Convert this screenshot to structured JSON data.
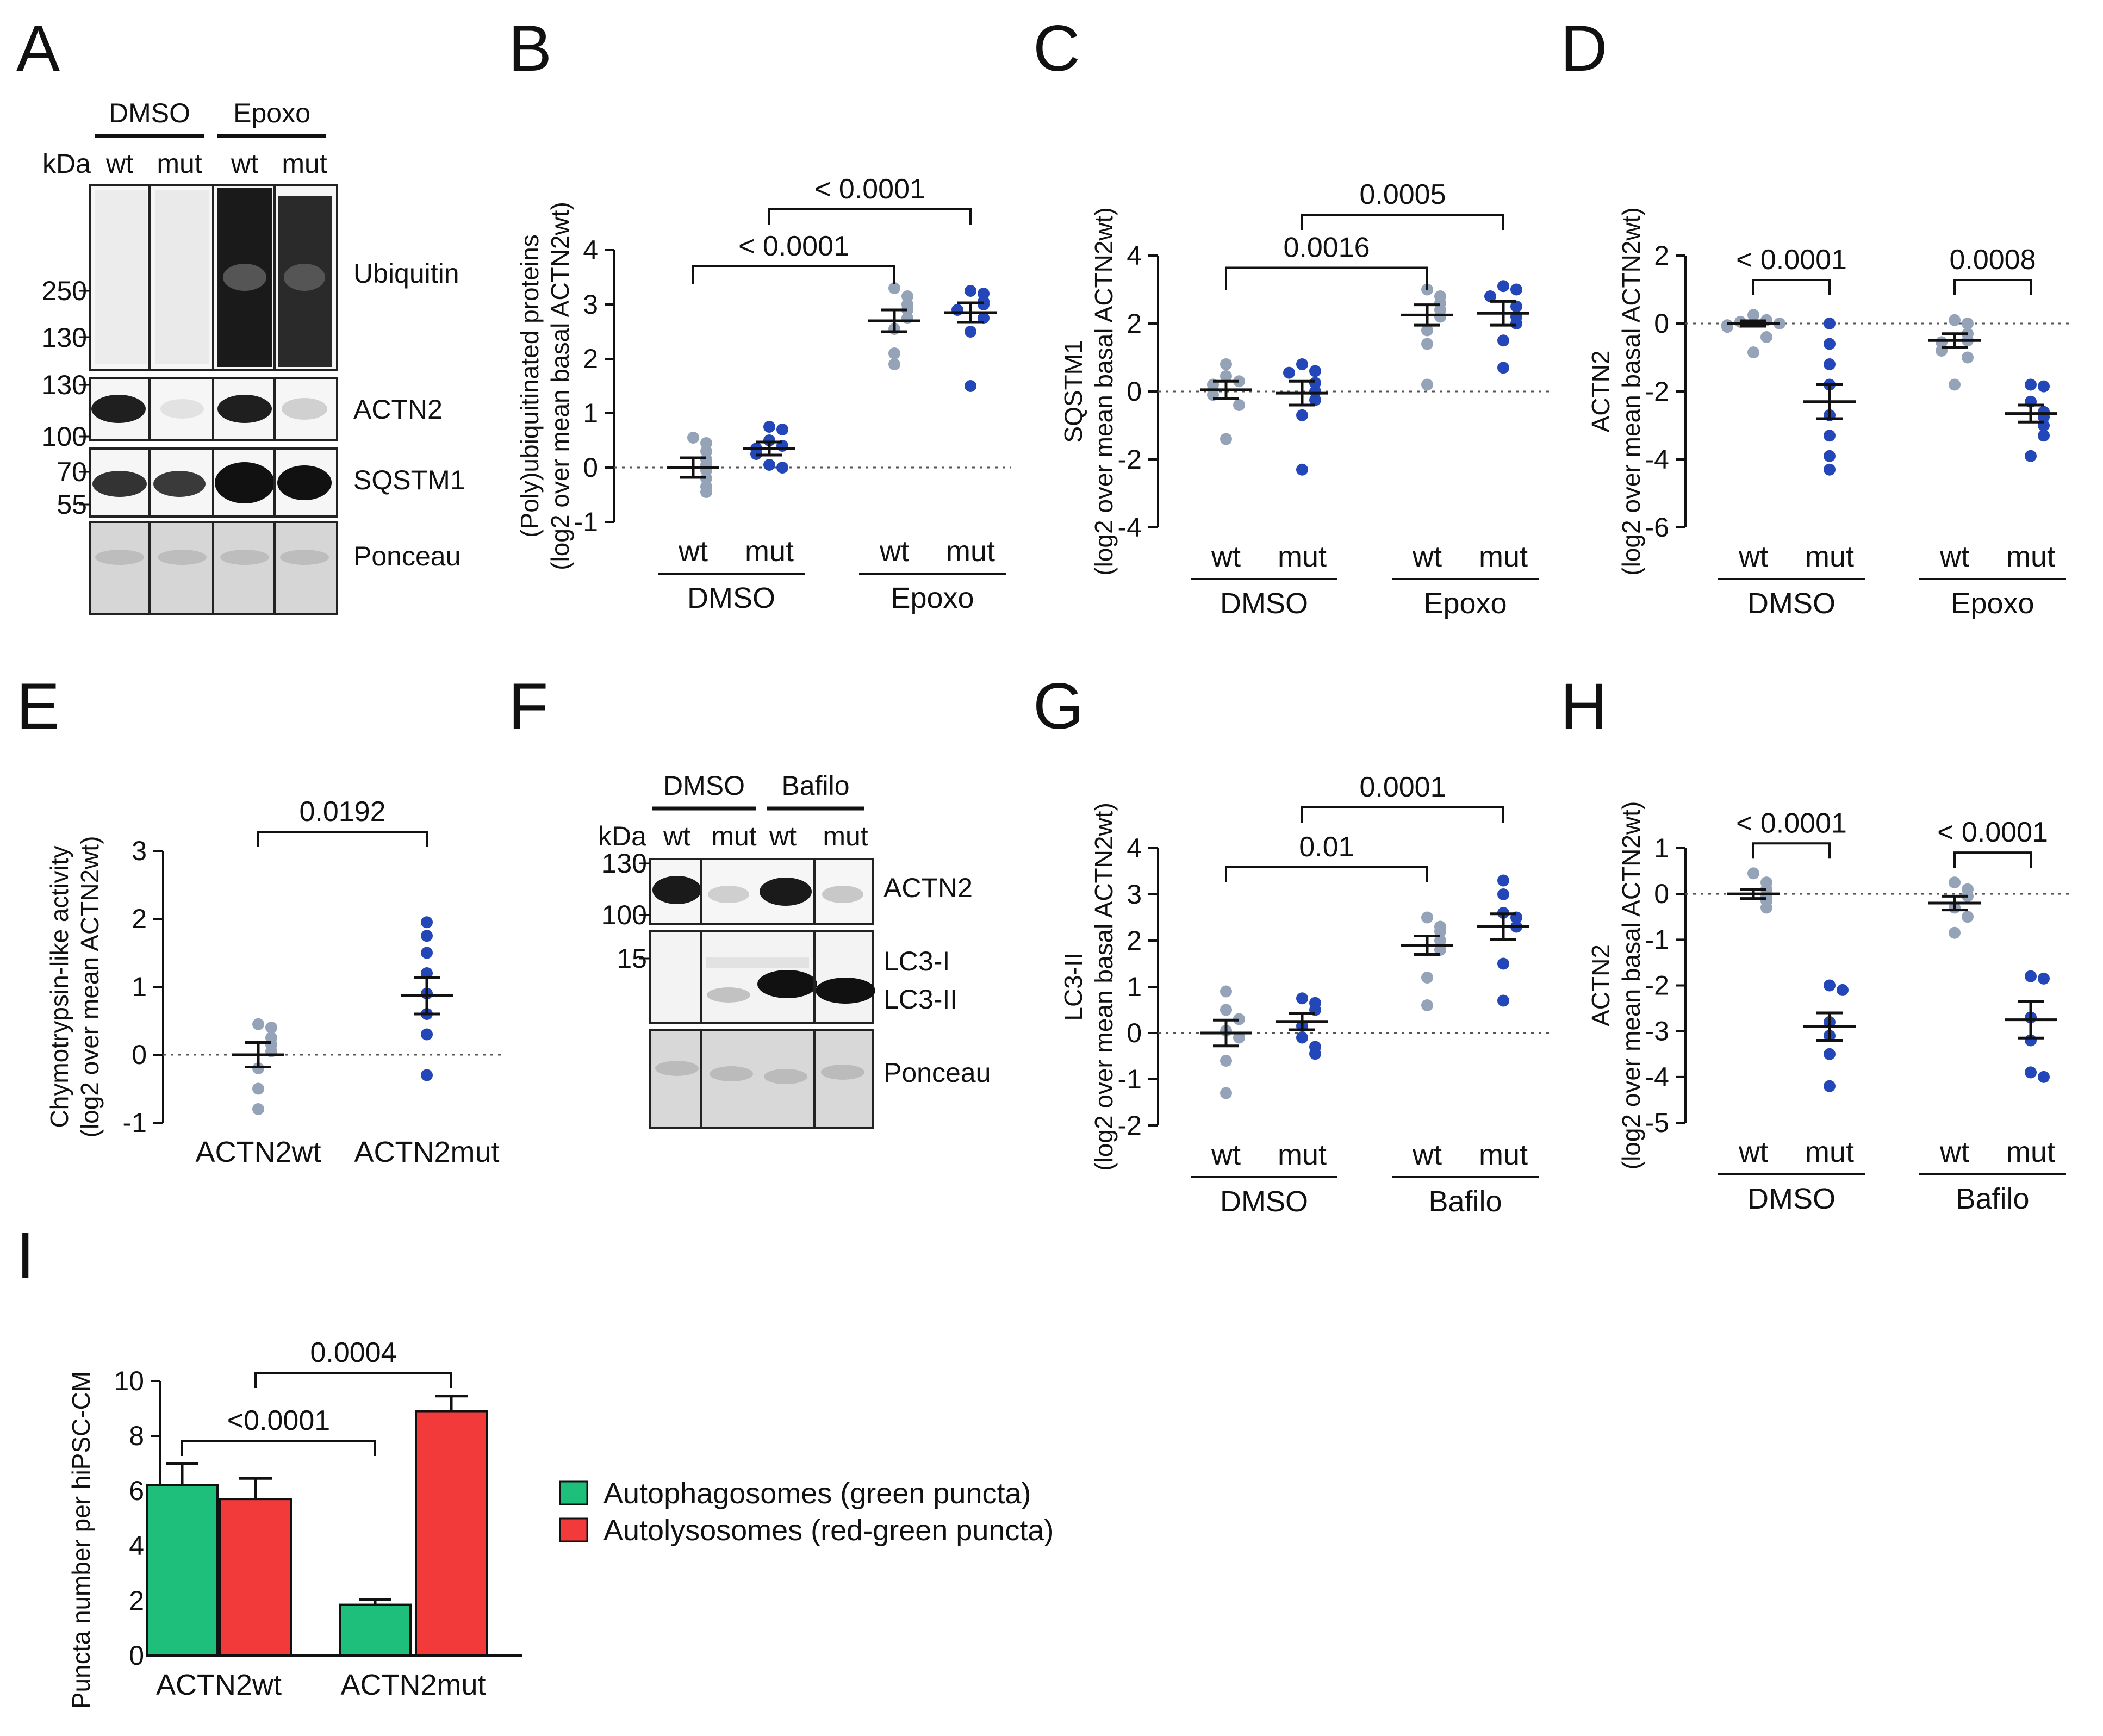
{
  "panel_letters": [
    "A",
    "B",
    "C",
    "D",
    "E",
    "F",
    "G",
    "H",
    "I"
  ],
  "colors": {
    "wt": "#95a3b8",
    "mut": "#2347b8",
    "green": "#1ebf7a",
    "red": "#f23a3a"
  },
  "blot_A": {
    "groups": [
      "DMSO",
      "Epoxo"
    ],
    "kda_label": "kDa",
    "lanes": [
      "wt",
      "mut",
      "wt",
      "mut"
    ],
    "markers": [
      "250",
      "130",
      "130",
      "100",
      "70",
      "55"
    ],
    "bands": [
      "Ubiquitin",
      "ACTN2",
      "SQSTM1",
      "Ponceau"
    ]
  },
  "blot_F": {
    "groups": [
      "DMSO",
      "Bafilo"
    ],
    "kda_label": "kDa",
    "lanes": [
      "wt",
      "mut",
      "wt",
      "mut"
    ],
    "markers": [
      "130",
      "100",
      "15"
    ],
    "bands": [
      "ACTN2",
      "LC3-I",
      "LC3-II",
      "Ponceau"
    ]
  },
  "chart_data": [
    {
      "panel": "B",
      "type": "scatter",
      "ylabel": [
        "(Poly)ubiquitinated proteins",
        "(log2 over mean basal ACTN2wt)"
      ],
      "ylim": [
        -1,
        4
      ],
      "yticks": [
        -1,
        0,
        1,
        2,
        3,
        4
      ],
      "groups": [
        {
          "name": "DMSO",
          "conditions": [
            {
              "label": "wt",
              "color": "wt",
              "mean": 0.0,
              "sem": 0.18,
              "values": [
                0.55,
                0.45,
                0.3,
                0.15,
                0.05,
                -0.05,
                -0.2,
                -0.35,
                -0.45
              ]
            },
            {
              "label": "mut",
              "color": "mut",
              "mean": 0.35,
              "sem": 0.12,
              "values": [
                0.75,
                0.7,
                0.5,
                0.4,
                0.35,
                0.25,
                0.05,
                0.0
              ]
            }
          ]
        },
        {
          "name": "Epoxo",
          "conditions": [
            {
              "label": "wt",
              "color": "wt",
              "mean": 2.7,
              "sem": 0.2,
              "values": [
                3.3,
                3.15,
                3.0,
                2.9,
                2.75,
                2.55,
                2.1,
                1.9
              ]
            },
            {
              "label": "mut",
              "color": "mut",
              "mean": 2.85,
              "sem": 0.18,
              "values": [
                3.25,
                3.2,
                3.05,
                3.0,
                2.9,
                2.75,
                2.5,
                1.5
              ]
            }
          ]
        }
      ],
      "comparisons": [
        {
          "a": [
            0,
            0
          ],
          "b": [
            1,
            0
          ],
          "label": "< 0.0001"
        },
        {
          "a": [
            0,
            1
          ],
          "b": [
            1,
            1
          ],
          "label": "< 0.0001"
        }
      ]
    },
    {
      "panel": "C",
      "type": "scatter",
      "ylabel": [
        "SQSTM1",
        "(log2 over mean basal ACTN2wt)"
      ],
      "ylim": [
        -4,
        4
      ],
      "yticks": [
        -4,
        -2,
        0,
        2,
        4
      ],
      "groups": [
        {
          "name": "DMSO",
          "conditions": [
            {
              "label": "wt",
              "color": "wt",
              "mean": 0.05,
              "sem": 0.25,
              "values": [
                0.8,
                0.45,
                0.3,
                0.2,
                0.05,
                -0.1,
                -0.4,
                -1.4
              ]
            },
            {
              "label": "mut",
              "color": "mut",
              "mean": -0.05,
              "sem": 0.35,
              "values": [
                0.8,
                0.6,
                0.55,
                0.25,
                0.0,
                -0.25,
                -0.7,
                -2.3
              ]
            }
          ]
        },
        {
          "name": "Epoxo",
          "conditions": [
            {
              "label": "wt",
              "color": "wt",
              "mean": 2.25,
              "sem": 0.3,
              "values": [
                3.0,
                2.8,
                2.6,
                2.4,
                2.2,
                1.8,
                1.4,
                0.2
              ]
            },
            {
              "label": "mut",
              "color": "mut",
              "mean": 2.3,
              "sem": 0.35,
              "values": [
                3.1,
                3.0,
                2.8,
                2.5,
                2.2,
                2.0,
                1.5,
                0.7
              ]
            }
          ]
        }
      ],
      "comparisons": [
        {
          "a": [
            0,
            0
          ],
          "b": [
            1,
            0
          ],
          "label": "0.0016"
        },
        {
          "a": [
            0,
            1
          ],
          "b": [
            1,
            1
          ],
          "label": "0.0005"
        }
      ]
    },
    {
      "panel": "D",
      "type": "scatter",
      "ylabel": [
        "ACTN2",
        "(log2 over mean basal ACTN2wt)"
      ],
      "ylim": [
        -6,
        2
      ],
      "yticks": [
        -6,
        -4,
        -2,
        0,
        2
      ],
      "groups": [
        {
          "name": "DMSO",
          "conditions": [
            {
              "label": "wt",
              "color": "wt",
              "mean": 0.0,
              "sem": 0.08,
              "values": [
                0.25,
                0.1,
                0.05,
                0.0,
                -0.05,
                -0.1,
                -0.4,
                -0.85
              ]
            },
            {
              "label": "mut",
              "color": "mut",
              "mean": -2.3,
              "sem": 0.5,
              "values": [
                0.0,
                -0.6,
                -1.2,
                -1.8,
                -2.7,
                -3.3,
                -3.9,
                -4.3
              ]
            }
          ]
        },
        {
          "name": "Epoxo",
          "conditions": [
            {
              "label": "wt",
              "color": "wt",
              "mean": -0.5,
              "sem": 0.2,
              "values": [
                0.1,
                0.0,
                -0.3,
                -0.5,
                -0.55,
                -0.8,
                -1.0,
                -1.8
              ]
            },
            {
              "label": "mut",
              "color": "mut",
              "mean": -2.65,
              "sem": 0.25,
              "values": [
                -1.8,
                -1.85,
                -2.3,
                -2.6,
                -2.75,
                -3.0,
                -3.3,
                -3.9
              ]
            }
          ]
        }
      ],
      "comparisons": [
        {
          "a": [
            0,
            0
          ],
          "b": [
            0,
            1
          ],
          "label": "< 0.0001"
        },
        {
          "a": [
            1,
            0
          ],
          "b": [
            1,
            1
          ],
          "label": "0.0008"
        }
      ]
    },
    {
      "panel": "E",
      "type": "scatter",
      "ylabel": [
        "Chymotrypsin-like activity",
        "(log2 over mean ACTN2wt)"
      ],
      "ylim": [
        -1,
        3
      ],
      "yticks": [
        -1,
        0,
        1,
        2,
        3
      ],
      "groups": [
        {
          "name": "",
          "conditions": [
            {
              "label": "ACTN2wt",
              "color": "wt",
              "mean": 0.0,
              "sem": 0.18,
              "values": [
                0.45,
                0.4,
                0.25,
                0.15,
                0.05,
                -0.2,
                -0.5,
                -0.8
              ]
            }
          ]
        },
        {
          "name": "",
          "conditions": [
            {
              "label": "ACTN2mut",
              "color": "mut",
              "mean": 0.87,
              "sem": 0.27,
              "values": [
                1.95,
                1.75,
                1.5,
                1.2,
                0.9,
                0.6,
                0.3,
                -0.3
              ]
            }
          ]
        }
      ],
      "comparisons": [
        {
          "a": [
            0,
            0
          ],
          "b": [
            1,
            0
          ],
          "label": "0.0192"
        }
      ]
    },
    {
      "panel": "G",
      "type": "scatter",
      "ylabel": [
        "LC3-II",
        "(log2 over mean basal ACTN2wt)"
      ],
      "ylim": [
        -2,
        4
      ],
      "yticks": [
        -2,
        -1,
        0,
        1,
        2,
        3,
        4
      ],
      "groups": [
        {
          "name": "DMSO",
          "conditions": [
            {
              "label": "wt",
              "color": "wt",
              "mean": 0.0,
              "sem": 0.28,
              "values": [
                0.9,
                0.5,
                0.3,
                0.05,
                -0.1,
                -0.6,
                -1.3
              ]
            },
            {
              "label": "mut",
              "color": "mut",
              "mean": 0.25,
              "sem": 0.18,
              "values": [
                0.75,
                0.65,
                0.5,
                0.15,
                -0.1,
                -0.3,
                -0.45
              ]
            }
          ]
        },
        {
          "name": "Bafilo",
          "conditions": [
            {
              "label": "wt",
              "color": "wt",
              "mean": 1.9,
              "sem": 0.2,
              "values": [
                2.5,
                2.3,
                2.2,
                2.0,
                1.8,
                1.2,
                0.6
              ]
            },
            {
              "label": "mut",
              "color": "mut",
              "mean": 2.3,
              "sem": 0.28,
              "values": [
                3.3,
                3.0,
                2.6,
                2.5,
                2.3,
                1.5,
                0.7
              ]
            }
          ]
        }
      ],
      "comparisons": [
        {
          "a": [
            0,
            0
          ],
          "b": [
            1,
            0
          ],
          "label": "0.01"
        },
        {
          "a": [
            0,
            1
          ],
          "b": [
            1,
            1
          ],
          "label": "0.0001"
        }
      ]
    },
    {
      "panel": "H",
      "type": "scatter",
      "ylabel": [
        "ACTN2",
        "(log2 over mean basal ACTN2wt)"
      ],
      "ylim": [
        -5,
        1
      ],
      "yticks": [
        -5,
        -4,
        -3,
        -2,
        -1,
        0,
        1
      ],
      "groups": [
        {
          "name": "DMSO",
          "conditions": [
            {
              "label": "wt",
              "color": "wt",
              "mean": 0.0,
              "sem": 0.1,
              "values": [
                0.45,
                0.25,
                0.1,
                -0.05,
                -0.15,
                -0.3
              ]
            },
            {
              "label": "mut",
              "color": "mut",
              "mean": -2.9,
              "sem": 0.3,
              "values": [
                -2.0,
                -2.1,
                -2.8,
                -3.1,
                -3.5,
                -4.2
              ]
            }
          ]
        },
        {
          "name": "Bafilo",
          "conditions": [
            {
              "label": "wt",
              "color": "wt",
              "mean": -0.2,
              "sem": 0.15,
              "values": [
                0.25,
                0.1,
                -0.05,
                -0.3,
                -0.5,
                -0.85
              ]
            },
            {
              "label": "mut",
              "color": "mut",
              "mean": -2.75,
              "sem": 0.4,
              "values": [
                -1.8,
                -1.85,
                -2.7,
                -3.2,
                -3.9,
                -4.0
              ]
            }
          ]
        }
      ],
      "comparisons": [
        {
          "a": [
            0,
            0
          ],
          "b": [
            0,
            1
          ],
          "label": "< 0.0001"
        },
        {
          "a": [
            1,
            0
          ],
          "b": [
            1,
            1
          ],
          "label": "< 0.0001"
        }
      ]
    },
    {
      "panel": "I",
      "type": "bar",
      "ylabel": [
        "Puncta number per hiPSC-CM"
      ],
      "ylim": [
        0,
        10
      ],
      "yticks": [
        0,
        2,
        4,
        6,
        8,
        10
      ],
      "categories": [
        "ACTN2wt",
        "ACTN2mut"
      ],
      "series": [
        {
          "name": "Autophagosomes (green puncta)",
          "color": "green",
          "values": [
            6.2,
            1.85
          ],
          "errors": [
            0.8,
            0.2
          ]
        },
        {
          "name": "Autolysosomes (red-green puncta)",
          "color": "red",
          "values": [
            5.7,
            8.9
          ],
          "errors": [
            0.75,
            0.55
          ]
        }
      ],
      "comparisons": [
        {
          "a": [
            0,
            0
          ],
          "b": [
            1,
            0
          ],
          "label": "<0.0001"
        },
        {
          "a": [
            0,
            1
          ],
          "b": [
            1,
            1
          ],
          "label": "0.0004"
        }
      ]
    }
  ]
}
